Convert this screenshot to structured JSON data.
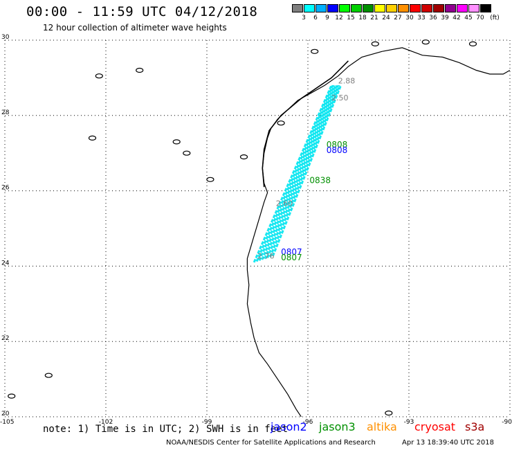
{
  "header": {
    "title": "00:00 - 11:59 UTC 04/12/2018",
    "subtitle": "12 hour collection of altimeter wave heights"
  },
  "colorbar": {
    "colors": [
      "#7f7f7f",
      "#00ffff",
      "#00b0ff",
      "#0000ff",
      "#00ff00",
      "#00d000",
      "#009000",
      "#ffff00",
      "#ffd000",
      "#ff9000",
      "#ff0000",
      "#d00000",
      "#a00000",
      "#900090",
      "#ff00ff",
      "#ff90ff",
      "#000000"
    ],
    "labels": [
      "3",
      "6",
      "9",
      "12",
      "15",
      "18",
      "21",
      "24",
      "27",
      "30",
      "33",
      "36",
      "39",
      "42",
      "45",
      "70"
    ],
    "unit": "(ft)"
  },
  "axes": {
    "lon_ticks": [
      "-105",
      "-102",
      "-99",
      "-96",
      "-93",
      "-90"
    ],
    "lat_ticks": [
      "20",
      "22",
      "24",
      "26",
      "28",
      "30"
    ]
  },
  "tracks": {
    "color": "#00e5f0",
    "label_color": "#7f7f7f",
    "labels": [
      {
        "text": "2.88",
        "lon": -95.1,
        "lat": 28.85
      },
      {
        "text": "2.50",
        "lon": -95.3,
        "lat": 28.4
      },
      {
        "text": "2.60",
        "lon": -96.95,
        "lat": 25.6
      },
      {
        "text": "2.76",
        "lon": -97.5,
        "lat": 24.2
      }
    ]
  },
  "pass_times": [
    {
      "text": "0808",
      "color": "#009000",
      "lon": -95.45,
      "lat": 27.15
    },
    {
      "text": "0808",
      "color": "#0000ff",
      "lon": -95.45,
      "lat": 27.0
    },
    {
      "text": "0838",
      "color": "#009000",
      "lon": -95.95,
      "lat": 26.2
    },
    {
      "text": "0807",
      "color": "#0000ff",
      "lon": -96.8,
      "lat": 24.3
    },
    {
      "text": "0807",
      "color": "#009000",
      "lon": -96.8,
      "lat": 24.15
    }
  ],
  "footer": {
    "note": "note: 1) Time is in UTC; 2) SWH is in feet",
    "credit": "NOAA/NESDIS Center for Satellite Applications and Research",
    "timestamp": "Apr 13 18:39:40 UTC 2018"
  },
  "legend": [
    {
      "name": "jason2",
      "color": "#0000ff"
    },
    {
      "name": "jason3",
      "color": "#009000"
    },
    {
      "name": "altika",
      "color": "#ff9000"
    },
    {
      "name": "cryosat",
      "color": "#ff0000"
    },
    {
      "name": "s3a",
      "color": "#a00000"
    }
  ]
}
